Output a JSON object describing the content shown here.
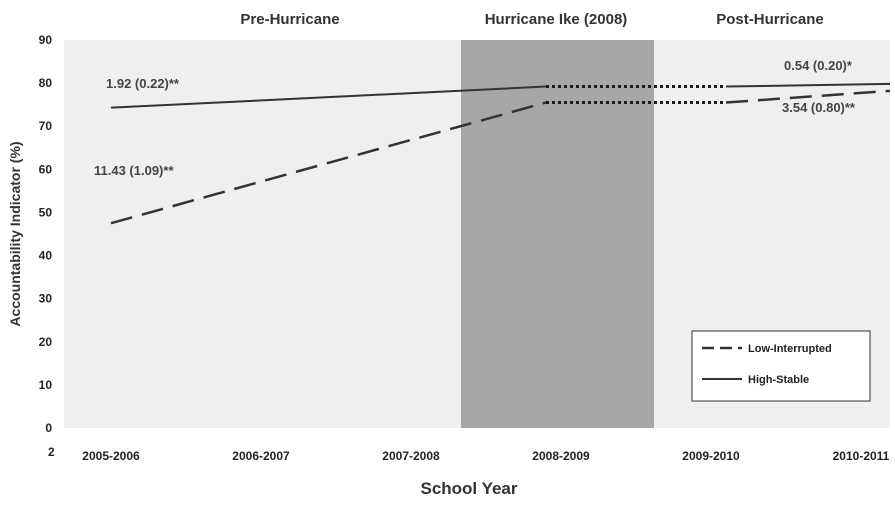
{
  "chart_data": {
    "type": "line",
    "title": "",
    "xlabel": "School Year",
    "ylabel": "Accountability Indicator (%)",
    "categories": [
      "2005-2006",
      "2006-2007",
      "2007-2008",
      "2008-2009",
      "2009-2010",
      "2010-2011"
    ],
    "ylim": [
      0,
      90
    ],
    "yticks": [
      "0",
      "10",
      "20",
      "30",
      "40",
      "50",
      "60",
      "70",
      "80",
      "90"
    ],
    "stray_label": "2",
    "periods": [
      {
        "label": "Pre-Hurricane"
      },
      {
        "label": "Hurricane Ike (2008)"
      },
      {
        "label": "Post-Hurricane"
      }
    ],
    "series": [
      {
        "name": "Low-Interrupted",
        "style": "dashed",
        "segments": [
          {
            "points": [
              [
                2005.5,
                47.5
              ],
              [
                2008.4,
                75.5
              ]
            ]
          },
          {
            "points": [
              [
                2009.6,
                75.5
              ],
              [
                2011.5,
                80.2
              ]
            ]
          }
        ],
        "gap": {
          "y": 75.5,
          "style": "dotted"
        }
      },
      {
        "name": "High-Stable",
        "style": "solid",
        "segments": [
          {
            "points": [
              [
                2005.5,
                74.3
              ],
              [
                2008.4,
                79.2
              ]
            ]
          },
          {
            "points": [
              [
                2009.6,
                79.2
              ],
              [
                2011.5,
                80.3
              ]
            ]
          }
        ],
        "gap": {
          "y": 79.2,
          "style": "dotted"
        }
      }
    ],
    "annotations": [
      {
        "text": "1.92 (0.22)**"
      },
      {
        "text": "11.43 (1.09)**"
      },
      {
        "text": "0.54 (0.20)*"
      },
      {
        "text": "3.54 (0.80)**"
      }
    ],
    "legend": {
      "position": "bottom-right",
      "items": [
        "Low-Interrupted",
        "High-Stable"
      ]
    },
    "colors": {
      "plot_bg": "#efefef",
      "hurricane_band": "#a6a6a6",
      "line": "#333333",
      "grid_edge": "#c8c8c8"
    }
  }
}
